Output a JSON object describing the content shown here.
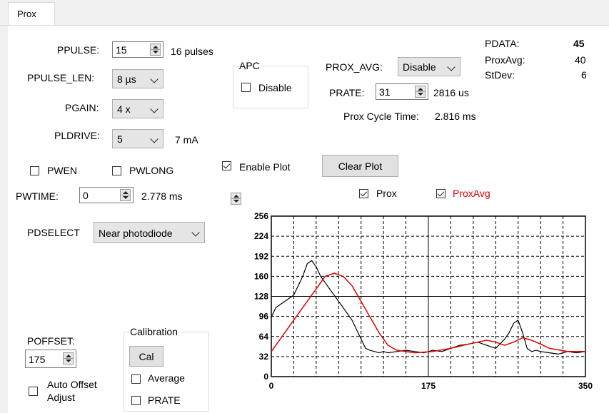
{
  "tab": {
    "label": "Prox"
  },
  "ppulse": {
    "label": "PPULSE:",
    "value": "15",
    "note": "16 pulses"
  },
  "ppulse_len": {
    "label": "PPULSE_LEN:",
    "value": "8 µs"
  },
  "pgain": {
    "label": "PGAIN:",
    "value": "4 x"
  },
  "pldrive": {
    "label": "PLDRIVE:",
    "value": "5",
    "note": "7 mA"
  },
  "apc": {
    "title": "APC",
    "disable_label": "Disable",
    "disable_checked": false
  },
  "prox_avg": {
    "label": "PROX_AVG:",
    "value": "Disable"
  },
  "prate": {
    "label": "PRATE:",
    "value": "31",
    "note": "2816 us"
  },
  "cycle_time": {
    "label": "Prox Cycle Time:",
    "value": "2.816 ms"
  },
  "stats": {
    "pdata_label": "PDATA:",
    "pdata_value": "45",
    "proxavg_label": "ProxAvg:",
    "proxavg_value": "40",
    "stdev_label": "StDev:",
    "stdev_value": "6"
  },
  "pwen": {
    "label": "PWEN",
    "checked": false
  },
  "pwlong": {
    "label": "PWLONG",
    "checked": false
  },
  "enable_plot": {
    "label": "Enable Plot",
    "checked": true
  },
  "clear_plot": {
    "label": "Clear Plot"
  },
  "pwtime": {
    "label": "PWTIME:",
    "value": "0",
    "note": "2.778 ms"
  },
  "pdselect": {
    "label": "PDSELECT",
    "value": "Near photodiode"
  },
  "legend": {
    "prox_label": "Prox",
    "proxavg_label": "ProxAvg",
    "prox_checked": true,
    "proxavg_checked": true
  },
  "poffset": {
    "label": "POFFSET:",
    "value": "175"
  },
  "auto_offset": {
    "label_line1": "Auto Offset",
    "label_line2": "Adjust",
    "checked": false
  },
  "calibration": {
    "title": "Calibration",
    "cal_label": "Cal",
    "average_label": "Average",
    "prate_label": "PRATE"
  },
  "colors": {
    "prox": "#000000",
    "proxavg": "#e00000",
    "grid": "#000000"
  },
  "chart_data": {
    "type": "line",
    "xlim": [
      0,
      350
    ],
    "ylim": [
      0,
      256
    ],
    "x_ticks": [
      0,
      175,
      350
    ],
    "y_ticks": [
      0,
      32,
      64,
      96,
      128,
      160,
      192,
      224,
      256
    ],
    "grid": true,
    "series": [
      {
        "name": "Prox",
        "x": [
          0,
          5,
          10,
          15,
          20,
          25,
          30,
          35,
          40,
          45,
          50,
          55,
          60,
          65,
          70,
          75,
          80,
          85,
          90,
          95,
          100,
          105,
          110,
          115,
          120,
          125,
          130,
          140,
          150,
          160,
          170,
          180,
          190,
          200,
          210,
          220,
          230,
          240,
          250,
          260,
          265,
          270,
          275,
          280,
          285,
          290,
          295,
          300,
          310,
          320,
          330,
          340,
          350
        ],
        "y": [
          95,
          110,
          115,
          120,
          125,
          130,
          145,
          160,
          180,
          185,
          175,
          160,
          150,
          140,
          130,
          120,
          110,
          100,
          90,
          75,
          60,
          45,
          42,
          40,
          38,
          40,
          38,
          40,
          42,
          40,
          38,
          42,
          40,
          45,
          50,
          52,
          55,
          50,
          45,
          60,
          70,
          85,
          90,
          70,
          45,
          40,
          42,
          40,
          38,
          36,
          40,
          38,
          40
        ]
      },
      {
        "name": "ProxAvg",
        "x": [
          0,
          10,
          20,
          30,
          40,
          50,
          60,
          70,
          80,
          90,
          100,
          110,
          120,
          130,
          140,
          160,
          180,
          200,
          220,
          240,
          250,
          260,
          270,
          280,
          290,
          300,
          310,
          330,
          350
        ],
        "y": [
          40,
          60,
          80,
          100,
          120,
          140,
          160,
          165,
          160,
          145,
          120,
          95,
          70,
          50,
          42,
          38,
          40,
          45,
          52,
          58,
          55,
          50,
          55,
          62,
          58,
          52,
          45,
          40,
          40
        ]
      }
    ]
  }
}
